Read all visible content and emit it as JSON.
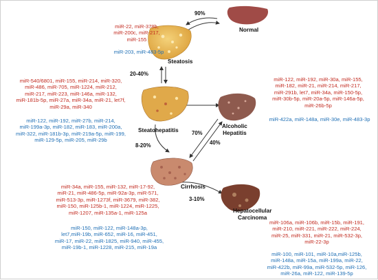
{
  "stages": {
    "normal": "Normal",
    "steatosis": "Steatosis",
    "steatohepatitis": "Steatohepatitis",
    "alcoholic_hepatitis": [
      "Alcoholic",
      "Hepatitis"
    ],
    "cirrhosis": "Cirrhosis",
    "hcc": [
      "Hepatocellular",
      "Carcinoma"
    ]
  },
  "transitions": {
    "normal_steatosis": "90%",
    "steatosis_steatohepatitis": "20-40%",
    "steatohepatitis_cirrhosis": "8-20%",
    "alcoholic_steatohepatitis": "70%",
    "alcoholic_cirrhosis": "40%",
    "cirrhosis_hcc": "3-10%"
  },
  "mirna": {
    "steatosis_up": [
      "miR-22, miR-378b,",
      "miR-200c, miR-217,",
      "miR-155"
    ],
    "steatosis_down": [
      "miR-203, miR-483-5p"
    ],
    "steatohepatitis_up": [
      "miR-540/6801, miR-155, miR-214, miR-320,",
      "miR-486, miR-705, miR-1224, miR-212,",
      "miR-217, miR-223, miR-146a, miR-132,",
      "miR-181b-5p, miR-27a, miR-34a, miR-21, let7f,",
      "miR-29a, miR-340"
    ],
    "steatohepatitis_down": [
      "miR-122, miR-192, miR-27b, miR-214,",
      "miR-199a-3p, miR-182, miR-183, miR-200a,",
      "miR-322, miR-181b-3p, miR-219a-5p, miR-199,",
      "miR-129-5p, miR-205, miR-29b"
    ],
    "alcoholic_up": [
      "miR-122, miR-192, miR-30a, miR-155,",
      "miR-182, miR-21, miR-214, miR-217,",
      "miR-291b, let7, miR-34a, miR-150-5p,",
      "miR-30b-5p, miR-20a-5p, miR-146a-5p,",
      "miR-26b-5p"
    ],
    "alcoholic_down": [
      "miR-422a, miR-148a, miR-30e, miR-483-3p"
    ],
    "cirrhosis_up": [
      "miR-34a, miR-155, miR-132, miR-17-92,",
      "miR-21, miR-486-5p, miR-92a-3p, miR-571,",
      "miR-513-3p, miR-1273f, miR-3679, miR-382,",
      "miR-150, miR-125b-1, miR-1224, miR-1225,",
      "miR-1207, miR-135a-1, miR-125a"
    ],
    "cirrhosis_down": [
      "miR-150, miR-122, miR-148a-3p,",
      "let7,miR-19b, miR-652, miR-16, miR-451,",
      "miR-17, miR-22, miR-1825, miR-940, miR-455,",
      "miR-19b-1, miR-1228, miR-215, miR-19a"
    ],
    "hcc_up": [
      "miR-106a, miR-106b, miR-15b, miR-191,",
      "miR-210, miR-221, miR-222, miR-224,",
      "miR-25, miR-331, miR-21, miR-532-3p,",
      "miR-22-3p"
    ],
    "hcc_down": [
      "miR-100, miR-101, miR-10a,miR-125b,",
      "miR-148a, miR-15a, miR-199a, miR-22,",
      "miR-422b, miR-99a, miR-532-5p, miR-126,",
      "miR-26a, miR-122, miR-139-5p"
    ]
  },
  "colors": {
    "upregulated": "#c22a1f",
    "downregulated": "#1f6fb5",
    "normal_liver": "#a04b47",
    "fatty_liver": "#e4b54e",
    "alcoholic_liver": "#8e5a4e",
    "cirrhotic_liver": "#c98a6e",
    "hcc_liver": "#7a3f2e"
  }
}
